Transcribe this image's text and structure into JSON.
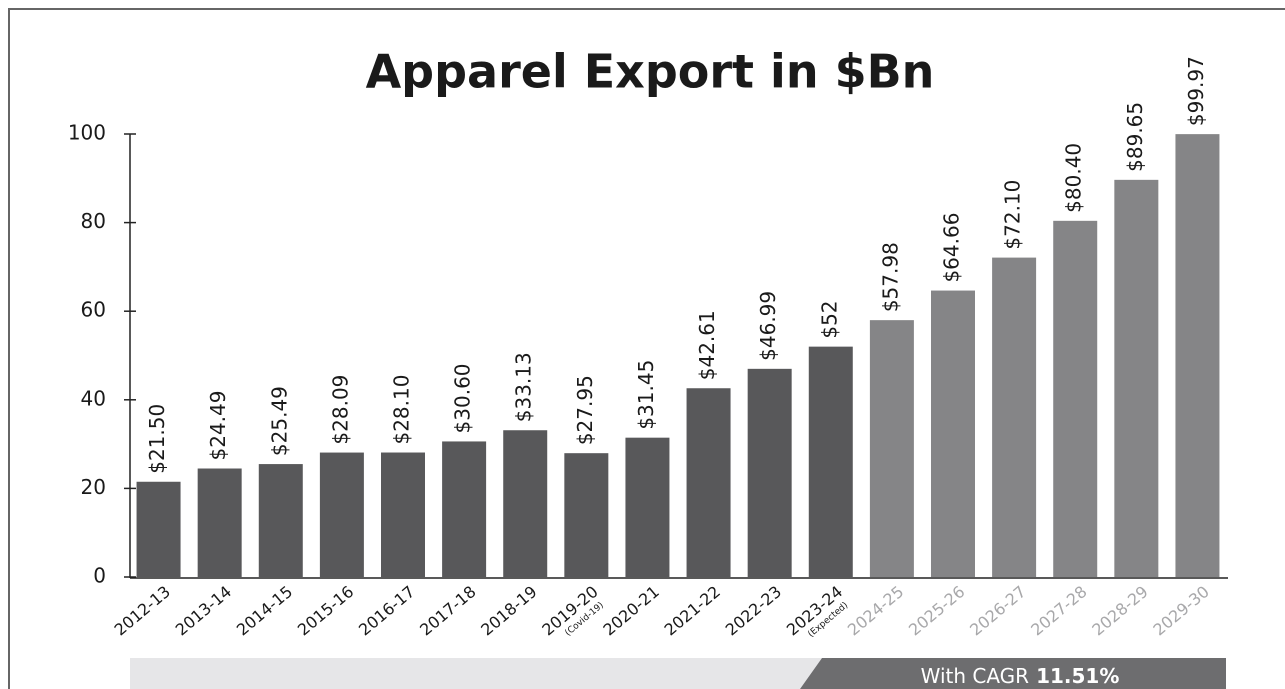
{
  "chart_data": {
    "type": "bar",
    "title": "Apparel Export in $Bn",
    "categories": [
      "2012-13",
      "2013-14",
      "2014-15",
      "2015-16",
      "2016-17",
      "2017-18",
      "2018-19",
      "2019-20",
      "2020-21",
      "2021-22",
      "2022-23",
      "2023-24",
      "2024-25",
      "2025-26",
      "2026-27",
      "2027-28",
      "2028-29",
      "2029-30"
    ],
    "category_notes": [
      null,
      null,
      null,
      null,
      null,
      null,
      null,
      "(Covid-19)",
      null,
      null,
      null,
      "(Expected)",
      null,
      null,
      null,
      null,
      null,
      null
    ],
    "values": [
      21.5,
      24.49,
      25.49,
      28.09,
      28.1,
      30.6,
      33.13,
      27.95,
      31.45,
      42.61,
      46.99,
      52,
      57.98,
      64.66,
      72.1,
      80.4,
      89.65,
      99.97
    ],
    "value_labels": [
      "$21.50",
      "$24.49",
      "$25.49",
      "$28.09",
      "$28.10",
      "$30.60",
      "$33.13",
      "$27.95",
      "$31.45",
      "$42.61",
      "$46.99",
      "$52",
      "$57.98",
      "$64.66",
      "$72.10",
      "$80.40",
      "$89.65",
      "$99.97"
    ],
    "colors": [
      "#58585a",
      "#58585a",
      "#58585a",
      "#58585a",
      "#58585a",
      "#58585a",
      "#58585a",
      "#58585a",
      "#58585a",
      "#58585a",
      "#58585a",
      "#58585a",
      "#858587",
      "#858587",
      "#858587",
      "#858587",
      "#858587",
      "#858587"
    ],
    "category_label_colors": [
      "#1a1a1a",
      "#1a1a1a",
      "#1a1a1a",
      "#1a1a1a",
      "#1a1a1a",
      "#1a1a1a",
      "#1a1a1a",
      "#1a1a1a",
      "#1a1a1a",
      "#1a1a1a",
      "#1a1a1a",
      "#1a1a1a",
      "#a8a8aa",
      "#a8a8aa",
      "#a8a8aa",
      "#a8a8aa",
      "#a8a8aa",
      "#a8a8aa"
    ],
    "ylim": [
      0,
      100
    ],
    "yticks": [
      0,
      20,
      40,
      60,
      80,
      100
    ],
    "grid": false,
    "annotation": {
      "text": "With CAGR",
      "value": "11.51%"
    }
  }
}
